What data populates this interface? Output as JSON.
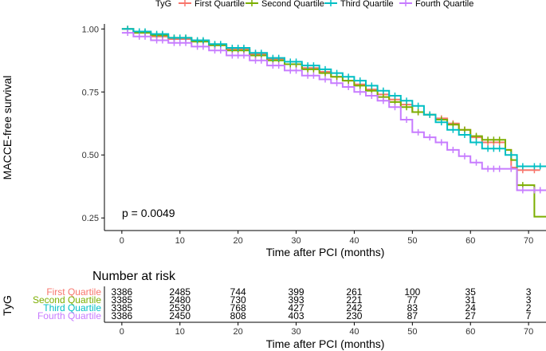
{
  "chart_data": [
    {
      "type": "line",
      "subtype": "kaplan-meier",
      "title": "",
      "legend_title": "TyG",
      "legend_position": "top",
      "xlabel": "Time after PCI (months)",
      "ylabel": "MACCE-free survival",
      "xlim": [
        -3,
        73
      ],
      "ylim": [
        0.2,
        1.02
      ],
      "x_ticks": [
        0,
        10,
        20,
        30,
        40,
        50,
        60,
        70
      ],
      "y_ticks": [
        0.25,
        0.5,
        0.75,
        1.0
      ],
      "y_tick_labels": [
        "0.25",
        "0.50",
        "0.75",
        "1.00"
      ],
      "annotation": "p = 0.0049",
      "grid": false,
      "series": [
        {
          "name": "First Quartile",
          "color": "#F8766D",
          "steps": [
            [
              0,
              1.0
            ],
            [
              2,
              0.985
            ],
            [
              5,
              0.97
            ],
            [
              8,
              0.96
            ],
            [
              12,
              0.95
            ],
            [
              15,
              0.935
            ],
            [
              18,
              0.92
            ],
            [
              22,
              0.9
            ],
            [
              25,
              0.88
            ],
            [
              28,
              0.86
            ],
            [
              31,
              0.845
            ],
            [
              34,
              0.83
            ],
            [
              36,
              0.81
            ],
            [
              38,
              0.795
            ],
            [
              40,
              0.78
            ],
            [
              42,
              0.76
            ],
            [
              44,
              0.74
            ],
            [
              46,
              0.72
            ],
            [
              48,
              0.7
            ],
            [
              50,
              0.67
            ],
            [
              52,
              0.66
            ],
            [
              54,
              0.645
            ],
            [
              56,
              0.625
            ],
            [
              58,
              0.6
            ],
            [
              60,
              0.57
            ],
            [
              62,
              0.55
            ],
            [
              66,
              0.52
            ],
            [
              67,
              0.45
            ],
            [
              68,
              0.44
            ],
            [
              72,
              0.44
            ]
          ],
          "censor_x": [
            1,
            3,
            4,
            6,
            7,
            9,
            10,
            11,
            13,
            14,
            16,
            17,
            19,
            20,
            21,
            23,
            24,
            26,
            27,
            29,
            30,
            32,
            33,
            35,
            37,
            39,
            41,
            43,
            45,
            47,
            49,
            51,
            53,
            55,
            57,
            59,
            61,
            63,
            64,
            65,
            69,
            71
          ]
        },
        {
          "name": "Second Quartile",
          "color": "#7CAE00",
          "steps": [
            [
              0,
              1.0
            ],
            [
              2,
              0.985
            ],
            [
              5,
              0.975
            ],
            [
              8,
              0.965
            ],
            [
              12,
              0.95
            ],
            [
              15,
              0.935
            ],
            [
              18,
              0.915
            ],
            [
              22,
              0.895
            ],
            [
              25,
              0.875
            ],
            [
              28,
              0.86
            ],
            [
              31,
              0.84
            ],
            [
              34,
              0.825
            ],
            [
              36,
              0.81
            ],
            [
              38,
              0.795
            ],
            [
              40,
              0.775
            ],
            [
              42,
              0.755
            ],
            [
              44,
              0.73
            ],
            [
              46,
              0.71
            ],
            [
              48,
              0.69
            ],
            [
              50,
              0.67
            ],
            [
              52,
              0.66
            ],
            [
              54,
              0.64
            ],
            [
              56,
              0.62
            ],
            [
              58,
              0.6
            ],
            [
              60,
              0.575
            ],
            [
              62,
              0.56
            ],
            [
              66,
              0.52
            ],
            [
              67,
              0.48
            ],
            [
              68,
              0.38
            ],
            [
              71,
              0.255
            ],
            [
              73,
              0.255
            ]
          ],
          "censor_x": [
            1,
            3,
            4,
            6,
            7,
            9,
            10,
            11,
            13,
            14,
            16,
            17,
            19,
            20,
            21,
            23,
            24,
            26,
            27,
            29,
            30,
            32,
            33,
            35,
            37,
            39,
            41,
            43,
            45,
            47,
            49,
            51,
            53,
            55,
            57,
            59,
            61,
            63,
            64,
            65,
            69
          ]
        },
        {
          "name": "Third Quartile",
          "color": "#00BFC4",
          "steps": [
            [
              0,
              1.0
            ],
            [
              2,
              0.99
            ],
            [
              5,
              0.98
            ],
            [
              8,
              0.965
            ],
            [
              12,
              0.955
            ],
            [
              15,
              0.94
            ],
            [
              18,
              0.925
            ],
            [
              22,
              0.905
            ],
            [
              25,
              0.885
            ],
            [
              28,
              0.87
            ],
            [
              31,
              0.855
            ],
            [
              34,
              0.84
            ],
            [
              36,
              0.825
            ],
            [
              38,
              0.81
            ],
            [
              40,
              0.795
            ],
            [
              42,
              0.775
            ],
            [
              44,
              0.755
            ],
            [
              46,
              0.735
            ],
            [
              48,
              0.715
            ],
            [
              50,
              0.695
            ],
            [
              52,
              0.66
            ],
            [
              54,
              0.63
            ],
            [
              56,
              0.6
            ],
            [
              58,
              0.58
            ],
            [
              60,
              0.55
            ],
            [
              62,
              0.525
            ],
            [
              66,
              0.5
            ],
            [
              68,
              0.455
            ],
            [
              73,
              0.455
            ]
          ],
          "censor_x": [
            1,
            3,
            4,
            6,
            7,
            9,
            10,
            11,
            13,
            14,
            16,
            17,
            19,
            20,
            21,
            23,
            24,
            26,
            27,
            29,
            30,
            32,
            33,
            35,
            37,
            39,
            41,
            43,
            45,
            47,
            49,
            51,
            53,
            55,
            57,
            59,
            61,
            63,
            64,
            65,
            67,
            69,
            71,
            72
          ]
        },
        {
          "name": "Fourth Quartile",
          "color": "#C77CFF",
          "steps": [
            [
              0,
              0.985
            ],
            [
              2,
              0.97
            ],
            [
              5,
              0.955
            ],
            [
              8,
              0.945
            ],
            [
              12,
              0.93
            ],
            [
              15,
              0.915
            ],
            [
              18,
              0.895
            ],
            [
              22,
              0.875
            ],
            [
              25,
              0.855
            ],
            [
              28,
              0.835
            ],
            [
              31,
              0.815
            ],
            [
              34,
              0.8
            ],
            [
              36,
              0.785
            ],
            [
              38,
              0.77
            ],
            [
              40,
              0.75
            ],
            [
              42,
              0.735
            ],
            [
              44,
              0.715
            ],
            [
              46,
              0.69
            ],
            [
              48,
              0.64
            ],
            [
              50,
              0.59
            ],
            [
              52,
              0.57
            ],
            [
              54,
              0.55
            ],
            [
              56,
              0.52
            ],
            [
              58,
              0.495
            ],
            [
              60,
              0.47
            ],
            [
              62,
              0.445
            ],
            [
              66,
              0.445
            ],
            [
              68,
              0.36
            ],
            [
              73,
              0.36
            ]
          ],
          "censor_x": [
            1,
            3,
            4,
            6,
            7,
            9,
            10,
            11,
            13,
            14,
            16,
            17,
            19,
            20,
            21,
            23,
            24,
            26,
            27,
            29,
            30,
            32,
            33,
            35,
            37,
            39,
            41,
            43,
            45,
            47,
            49,
            51,
            53,
            55,
            57,
            59,
            61,
            63,
            64,
            65,
            67,
            69,
            71,
            72
          ]
        }
      ]
    },
    {
      "type": "table",
      "title": "Number at risk",
      "ylabel": "TyG",
      "xlabel": "Time after PCI (months)",
      "x_ticks": [
        0,
        10,
        20,
        30,
        40,
        50,
        60,
        70
      ],
      "rows": [
        {
          "name": "First Quartile",
          "color": "#F8766D",
          "values": [
            "3386",
            "2485",
            "744",
            "399",
            "261",
            "100",
            "35",
            "3"
          ]
        },
        {
          "name": "Second Quartile",
          "color": "#7CAE00",
          "values": [
            "3385",
            "2480",
            "730",
            "393",
            "221",
            "77",
            "31",
            "3"
          ]
        },
        {
          "name": "Third Quartile",
          "color": "#00BFC4",
          "values": [
            "3385",
            "2530",
            "768",
            "427",
            "242",
            "83",
            "24",
            "2"
          ]
        },
        {
          "name": "Fourth Quartile",
          "color": "#C77CFF",
          "values": [
            "3386",
            "2450",
            "808",
            "403",
            "230",
            "87",
            "27",
            "7"
          ]
        }
      ]
    }
  ]
}
